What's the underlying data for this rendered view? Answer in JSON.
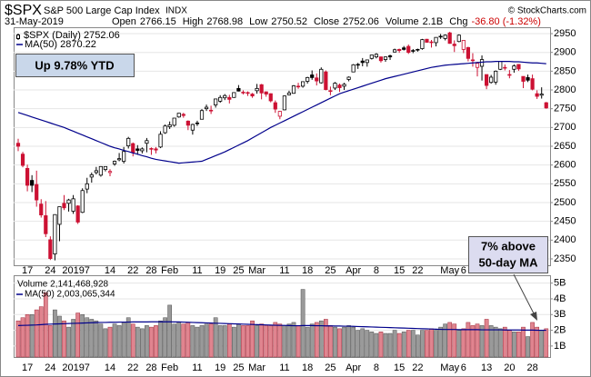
{
  "chart_data": {
    "type": "candlestick",
    "title": "$SPX",
    "subtitle": "S&P 500 Large Cap Index",
    "exchange": "INDX",
    "source": "© StockCharts.com",
    "date": "31-May-2019",
    "quote": [
      {
        "label": "Open",
        "value": "2766.15"
      },
      {
        "label": "High",
        "value": "2768.98"
      },
      {
        "label": "Low",
        "value": "2750.52"
      },
      {
        "label": "Close",
        "value": "2752.06"
      },
      {
        "label": "Volume",
        "value": "2.1B"
      },
      {
        "label": "Chg",
        "value": "-36.80 (-1.32%)",
        "color": "#cc0000"
      }
    ],
    "annotations": [
      "Up 9.78% YTD",
      "7% above",
      "50-day MA"
    ],
    "categories": [
      null,
      null,
      "17",
      null,
      null,
      null,
      null,
      "24",
      null,
      null,
      null,
      null,
      "2019",
      null,
      null,
      "7",
      null,
      null,
      null,
      null,
      "14",
      null,
      null,
      null,
      null,
      "22",
      null,
      null,
      null,
      "28",
      null,
      null,
      null,
      "Feb",
      null,
      null,
      null,
      null,
      null,
      "11",
      null,
      null,
      null,
      null,
      "19",
      null,
      null,
      null,
      "25",
      null,
      null,
      null,
      "Mar",
      null,
      null,
      null,
      null,
      null,
      "11",
      null,
      null,
      null,
      null,
      "18",
      null,
      null,
      null,
      null,
      "25",
      null,
      null,
      null,
      null,
      "Apr",
      null,
      null,
      null,
      null,
      "8",
      null,
      null,
      null,
      null,
      "15",
      null,
      null,
      null,
      "22",
      null,
      null,
      null,
      null,
      null,
      null,
      "May",
      null,
      null,
      "6",
      null,
      null,
      null,
      null,
      "13",
      null,
      null,
      null,
      null,
      "20",
      null,
      null,
      null,
      null,
      "28",
      null,
      null,
      null
    ],
    "ylim": [
      2333,
      2967
    ],
    "yticks": [
      2350,
      2400,
      2450,
      2500,
      2550,
      2600,
      2650,
      2700,
      2750,
      2800,
      2850,
      2900,
      2950
    ],
    "grid": true,
    "colors": {
      "up": "#000000",
      "down": "#cc1133",
      "hollow": "#ffffff"
    },
    "ohlc": {
      "name": "$SPX (Daily) 2752.06",
      "open": [
        2658,
        2629,
        2591,
        2559,
        2548,
        2496,
        2465,
        2401,
        2363,
        2442,
        2498,
        2498,
        2477,
        2491,
        2474,
        2536,
        2568,
        2580,
        2573,
        2588,
        2580,
        2603,
        2614,
        2610,
        2651,
        2657,
        2643,
        2638,
        2658,
        2644,
        2643,
        2648,
        2686,
        2702,
        2706,
        2728,
        2735,
        2717,
        2693,
        2712,
        2722,
        2750,
        2744,
        2760,
        2770,
        2779,
        2780,
        2780,
        2804,
        2793,
        2792,
        2789,
        2798,
        2814,
        2795,
        2790,
        2766,
        2730,
        2747,
        2787,
        2791,
        2810,
        2810,
        2823,
        2840,
        2832,
        2819,
        2848,
        2796,
        2805,
        2813,
        2810,
        2828,
        2848,
        2868,
        2877,
        2873,
        2884,
        2888,
        2888,
        2881,
        2891,
        2901,
        2908,
        2912,
        2916,
        2904,
        2908,
        2910,
        2935,
        2928,
        2926,
        2941,
        2937,
        2952,
        2922,
        2929,
        2908,
        2913,
        2880,
        2860,
        2863,
        2841,
        2820,
        2821,
        2855,
        2858,
        2841,
        2855,
        2868,
        2836,
        2833,
        2830,
        2790,
        2786,
        2766
      ],
      "high": [
        2670,
        2635,
        2601,
        2573,
        2585,
        2509,
        2504,
        2410,
        2467,
        2489,
        2520,
        2510,
        2520,
        2493,
        2538,
        2566,
        2580,
        2595,
        2597,
        2596,
        2589,
        2612,
        2632,
        2648,
        2675,
        2660,
        2653,
        2647,
        2672,
        2647,
        2648,
        2690,
        2708,
        2716,
        2725,
        2738,
        2739,
        2719,
        2710,
        2718,
        2749,
        2761,
        2758,
        2776,
        2786,
        2789,
        2787,
        2794,
        2813,
        2799,
        2796,
        2792,
        2816,
        2816,
        2796,
        2791,
        2772,
        2744,
        2785,
        2798,
        2813,
        2819,
        2822,
        2835,
        2852,
        2844,
        2860,
        2852,
        2809,
        2821,
        2817,
        2819,
        2836,
        2869,
        2872,
        2885,
        2881,
        2893,
        2898,
        2889,
        2889,
        2894,
        2910,
        2910,
        2917,
        2921,
        2909,
        2910,
        2936,
        2936,
        2933,
        2940,
        2949,
        2948,
        2955,
        2932,
        2948,
        2933,
        2915,
        2898,
        2875,
        2892,
        2841,
        2840,
        2852,
        2876,
        2868,
        2853,
        2868,
        2869,
        2836,
        2841,
        2841,
        2799,
        2807,
        2768
      ],
      "low": [
        2637,
        2594,
        2530,
        2528,
        2489,
        2460,
        2408,
        2347,
        2346,
        2397,
        2480,
        2476,
        2470,
        2443,
        2472,
        2525,
        2553,
        2575,
        2569,
        2583,
        2570,
        2598,
        2610,
        2604,
        2644,
        2623,
        2627,
        2631,
        2634,
        2627,
        2631,
        2645,
        2683,
        2696,
        2702,
        2726,
        2726,
        2693,
        2681,
        2704,
        2722,
        2744,
        2736,
        2753,
        2766,
        2773,
        2764,
        2779,
        2796,
        2788,
        2784,
        2779,
        2790,
        2775,
        2782,
        2767,
        2739,
        2722,
        2746,
        2786,
        2790,
        2803,
        2806,
        2817,
        2827,
        2812,
        2817,
        2799,
        2786,
        2800,
        2795,
        2800,
        2823,
        2848,
        2856,
        2863,
        2862,
        2881,
        2884,
        2873,
        2875,
        2880,
        2900,
        2899,
        2905,
        2896,
        2898,
        2902,
        2907,
        2926,
        2913,
        2916,
        2936,
        2932,
        2923,
        2901,
        2927,
        2898,
        2876,
        2862,
        2836,
        2825,
        2802,
        2817,
        2814,
        2853,
        2852,
        2831,
        2846,
        2851,
        2805,
        2821,
        2799,
        2776,
        2777,
        2750
      ],
      "close": [
        2650,
        2599,
        2546,
        2546,
        2507,
        2467,
        2417,
        2351,
        2468,
        2489,
        2486,
        2507,
        2510,
        2448,
        2532,
        2550,
        2574,
        2585,
        2596,
        2596,
        2583,
        2610,
        2617,
        2636,
        2671,
        2633,
        2639,
        2643,
        2665,
        2644,
        2640,
        2682,
        2704,
        2707,
        2725,
        2738,
        2732,
        2706,
        2708,
        2710,
        2745,
        2754,
        2746,
        2776,
        2780,
        2785,
        2775,
        2793,
        2797,
        2794,
        2793,
        2784,
        2804,
        2792,
        2789,
        2771,
        2749,
        2743,
        2784,
        2792,
        2811,
        2809,
        2822,
        2833,
        2833,
        2824,
        2855,
        2801,
        2798,
        2818,
        2806,
        2815,
        2834,
        2867,
        2867,
        2873,
        2880,
        2893,
        2895,
        2878,
        2888,
        2888,
        2907,
        2905,
        2908,
        2900,
        2905,
        2908,
        2934,
        2927,
        2926,
        2940,
        2943,
        2946,
        2924,
        2918,
        2946,
        2932,
        2884,
        2880,
        2871,
        2881,
        2812,
        2834,
        2850,
        2876,
        2860,
        2840,
        2864,
        2856,
        2823,
        2826,
        2802,
        2783,
        2789,
        2752
      ]
    },
    "series": [
      {
        "name": "MA(50) 2870.22",
        "color": "#00008b",
        "values": [
          2740,
          2736,
          2732,
          2728,
          2724,
          2720,
          2716,
          2712,
          2708,
          2704,
          2700,
          2695,
          2690,
          2685,
          2680,
          2675,
          2670,
          2665,
          2660,
          2655,
          2650,
          2646,
          2643,
          2639,
          2636,
          2632,
          2629,
          2625,
          2622,
          2618,
          2615,
          2613,
          2611,
          2609,
          2607,
          2605,
          2606,
          2607,
          2608,
          2609,
          2610,
          2615,
          2620,
          2625,
          2630,
          2635,
          2641,
          2647,
          2653,
          2659,
          2665,
          2672,
          2679,
          2686,
          2693,
          2700,
          2706,
          2712,
          2718,
          2724,
          2730,
          2736,
          2742,
          2748,
          2754,
          2760,
          2766,
          2772,
          2778,
          2784,
          2790,
          2794,
          2798,
          2802,
          2806,
          2810,
          2814,
          2818,
          2822,
          2826,
          2830,
          2833,
          2836,
          2839,
          2842,
          2845,
          2848,
          2851,
          2854,
          2857,
          2860,
          2862,
          2864,
          2866,
          2867,
          2868,
          2869,
          2870,
          2871,
          2872,
          2873,
          2874,
          2875,
          2875,
          2876,
          2876,
          2876,
          2876,
          2875,
          2875,
          2874,
          2873,
          2872,
          2872,
          2871,
          2870
        ]
      }
    ],
    "volume": {
      "name": "Volume 2,141,468,928",
      "ylim": [
        0.3,
        5.5
      ],
      "yticks": [
        {
          "value": 1,
          "label": "1B"
        },
        {
          "value": 2,
          "label": "2B"
        },
        {
          "value": 3,
          "label": "3B"
        },
        {
          "value": 4,
          "label": "4B"
        },
        {
          "value": 5,
          "label": "5B"
        }
      ],
      "colors": {
        "up": "#9a9a9a",
        "up_edge": "#505050",
        "down": "#e0848f",
        "down_edge": "#a02838"
      },
      "values": [
        2.6,
        2.8,
        3.0,
        3.0,
        3.3,
        3.5,
        4.4,
        2.3,
        3.3,
        2.9,
        2.6,
        2.2,
        2.7,
        3.1,
        3.0,
        2.8,
        2.7,
        2.6,
        2.4,
        2.1,
        2.2,
        2.4,
        2.3,
        2.5,
        2.8,
        2.4,
        2.2,
        2.1,
        2.3,
        2.2,
        2.3,
        2.6,
        2.8,
        3.6,
        2.4,
        2.5,
        2.4,
        2.5,
        2.3,
        2.2,
        2.3,
        2.4,
        2.4,
        2.8,
        2.3,
        2.3,
        2.4,
        2.2,
        2.4,
        2.3,
        2.3,
        2.6,
        2.3,
        2.4,
        2.3,
        2.3,
        2.5,
        2.4,
        2.3,
        2.4,
        2.5,
        2.3,
        4.6,
        2.2,
        2.4,
        2.5,
        2.6,
        2.7,
        2.3,
        2.2,
        2.1,
        2.2,
        2.3,
        2.2,
        2.0,
        2.1,
        2.0,
        1.9,
        1.8,
        1.9,
        1.8,
        1.8,
        2.0,
        1.8,
        1.9,
        2.0,
        2.0,
        1.7,
        2.0,
        2.0,
        2.1,
        2.0,
        2.2,
        2.4,
        2.5,
        2.4,
        2.0,
        2.1,
        2.5,
        2.3,
        2.4,
        2.3,
        2.7,
        2.3,
        2.2,
        2.1,
        2.2,
        2.0,
        1.9,
        1.9,
        2.2,
        1.6,
        2.5,
        2.2,
        2.0,
        2.1
      ],
      "ma": {
        "name": "MA(50) 2,003,065,344",
        "color": "#00008b",
        "values": [
          2.3,
          2.31,
          2.32,
          2.33,
          2.34,
          2.36,
          2.38,
          2.39,
          2.4,
          2.41,
          2.42,
          2.43,
          2.44,
          2.45,
          2.46,
          2.47,
          2.48,
          2.49,
          2.5,
          2.5,
          2.51,
          2.51,
          2.52,
          2.52,
          2.52,
          2.53,
          2.53,
          2.53,
          2.53,
          2.54,
          2.54,
          2.54,
          2.54,
          2.54,
          2.53,
          2.53,
          2.52,
          2.51,
          2.5,
          2.49,
          2.48,
          2.47,
          2.46,
          2.45,
          2.44,
          2.43,
          2.42,
          2.41,
          2.4,
          2.39,
          2.38,
          2.37,
          2.36,
          2.35,
          2.34,
          2.33,
          2.32,
          2.31,
          2.31,
          2.3,
          2.29,
          2.29,
          2.3,
          2.3,
          2.3,
          2.29,
          2.29,
          2.28,
          2.28,
          2.27,
          2.27,
          2.26,
          2.26,
          2.25,
          2.24,
          2.23,
          2.22,
          2.21,
          2.2,
          2.19,
          2.18,
          2.17,
          2.16,
          2.15,
          2.14,
          2.13,
          2.12,
          2.11,
          2.1,
          2.09,
          2.08,
          2.07,
          2.06,
          2.05,
          2.05,
          2.05,
          2.04,
          2.04,
          2.04,
          2.04,
          2.04,
          2.03,
          2.03,
          2.03,
          2.03,
          2.03,
          2.02,
          2.02,
          2.02,
          2.02,
          2.01,
          2.01,
          2.01,
          2.0,
          2.0,
          2.0
        ]
      }
    }
  }
}
